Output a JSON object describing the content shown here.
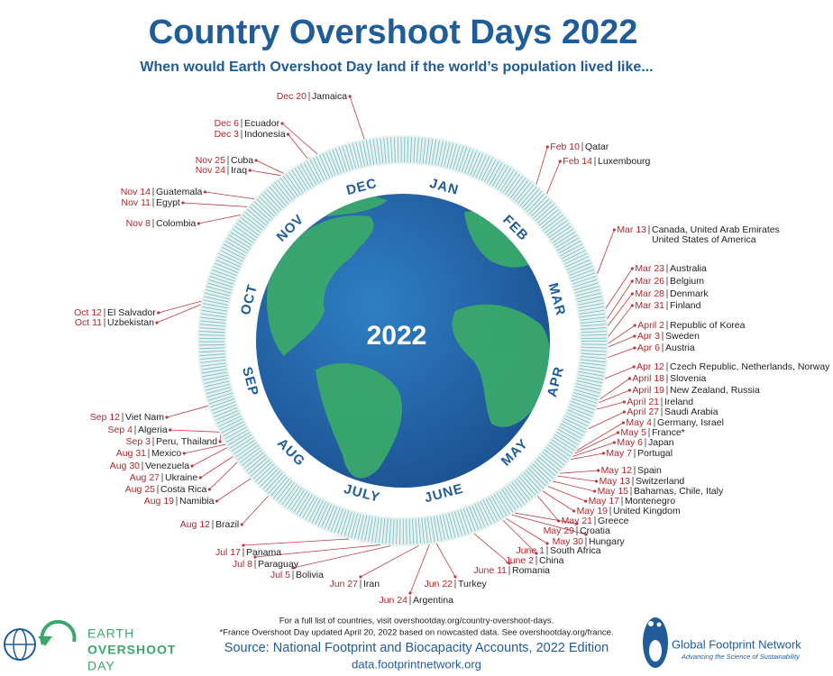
{
  "header": {
    "title": "Country Overshoot Days 2022",
    "subtitle": "When would Earth Overshoot Day land if the world’s population lived like..."
  },
  "globe_label": "2022",
  "months": [
    "JAN",
    "FEB",
    "MAR",
    "APR",
    "MAY",
    "JUNE",
    "JULY",
    "AUG",
    "SEP",
    "OCT",
    "NOV",
    "DEC"
  ],
  "countries": [
    {
      "date": "Dec 20",
      "name": "Jamaica"
    },
    {
      "date": "Dec 6",
      "name": "Ecuador"
    },
    {
      "date": "Dec 3",
      "name": "Indonesia"
    },
    {
      "date": "Nov 25",
      "name": "Cuba"
    },
    {
      "date": "Nov 24",
      "name": "Iraq"
    },
    {
      "date": "Nov 14",
      "name": "Guatemala"
    },
    {
      "date": "Nov 11",
      "name": "Egypt"
    },
    {
      "date": "Nov 8",
      "name": "Colombia"
    },
    {
      "date": "Oct 12",
      "name": "El Salvador"
    },
    {
      "date": "Oct 11",
      "name": "Uzbekistan"
    },
    {
      "date": "Sep 12",
      "name": "Viet Nam"
    },
    {
      "date": "Sep 4",
      "name": "Algeria"
    },
    {
      "date": "Sep 3",
      "name": "Peru, Thailand"
    },
    {
      "date": "Aug 31",
      "name": "Mexico"
    },
    {
      "date": "Aug 30",
      "name": "Venezuela"
    },
    {
      "date": "Aug 27",
      "name": "Ukraine"
    },
    {
      "date": "Aug 25",
      "name": "Costa Rica"
    },
    {
      "date": "Aug 19",
      "name": "Namibia"
    },
    {
      "date": "Aug 12",
      "name": "Brazil"
    },
    {
      "date": "Jul 17",
      "name": "Panama"
    },
    {
      "date": "Jul 8",
      "name": "Paraguay"
    },
    {
      "date": "Jul 5",
      "name": "Bolivia"
    },
    {
      "date": "Jun 27",
      "name": "Iran"
    },
    {
      "date": "Jun 24",
      "name": "Argentina"
    },
    {
      "date": "Jun 22",
      "name": "Turkey"
    },
    {
      "date": "June 11",
      "name": "Romania"
    },
    {
      "date": "June 2",
      "name": "China"
    },
    {
      "date": "June 1",
      "name": "South Africa"
    },
    {
      "date": "May 30",
      "name": "Hungary"
    },
    {
      "date": "May 29",
      "name": "Croatia"
    },
    {
      "date": "May 21",
      "name": "Greece"
    },
    {
      "date": "May 19",
      "name": "United Kingdom"
    },
    {
      "date": "May 17",
      "name": "Montenegro"
    },
    {
      "date": "May 15",
      "name": "Bahamas, Chile, Italy"
    },
    {
      "date": "May 13",
      "name": "Switzerland"
    },
    {
      "date": "May 12",
      "name": "Spain"
    },
    {
      "date": "May 7",
      "name": "Portugal"
    },
    {
      "date": "May 6",
      "name": "Japan"
    },
    {
      "date": "May 5",
      "name": "France*"
    },
    {
      "date": "May 4",
      "name": "Germany, Israel"
    },
    {
      "date": "April 27",
      "name": "Saudi Arabia"
    },
    {
      "date": "April 21",
      "name": "Ireland"
    },
    {
      "date": "April 19",
      "name": "New Zealand, Russia"
    },
    {
      "date": "April 18",
      "name": "Slovenia"
    },
    {
      "date": "Apr 12",
      "name": "Czech Republic, Netherlands, Norway"
    },
    {
      "date": "Apr 6",
      "name": "Austria"
    },
    {
      "date": "Apr 3",
      "name": "Sweden"
    },
    {
      "date": "April 2",
      "name": "Republic of Korea"
    },
    {
      "date": "Mar 31",
      "name": "Finland"
    },
    {
      "date": "Mar 28",
      "name": "Denmark"
    },
    {
      "date": "Mar 26",
      "name": "Belgium"
    },
    {
      "date": "Mar 23",
      "name": "Australia"
    },
    {
      "date": "Mar 13",
      "name": "Canada, United Arab Emirates",
      "name_line2": "United States of America"
    },
    {
      "date": "Feb 14",
      "name": "Luxembourg"
    },
    {
      "date": "Feb 10",
      "name": "Qatar"
    }
  ],
  "footer": {
    "note1": "For a full list of countries, visit overshootday.org/country-overshoot-days.",
    "note2": "*France Overshoot Day updated April 20, 2022 based on nowcasted data. See overshootday.org/france.",
    "source": "Source: National Footprint and Biocapacity Accounts, 2022 Edition",
    "url": "data.footprintnetwork.org"
  },
  "logos": {
    "left": [
      "EARTH",
      "OVERSHOOT",
      "DAY"
    ],
    "right_name": "Global Footprint Network",
    "right_tagline": "Advancing the Science of Sustainability"
  }
}
